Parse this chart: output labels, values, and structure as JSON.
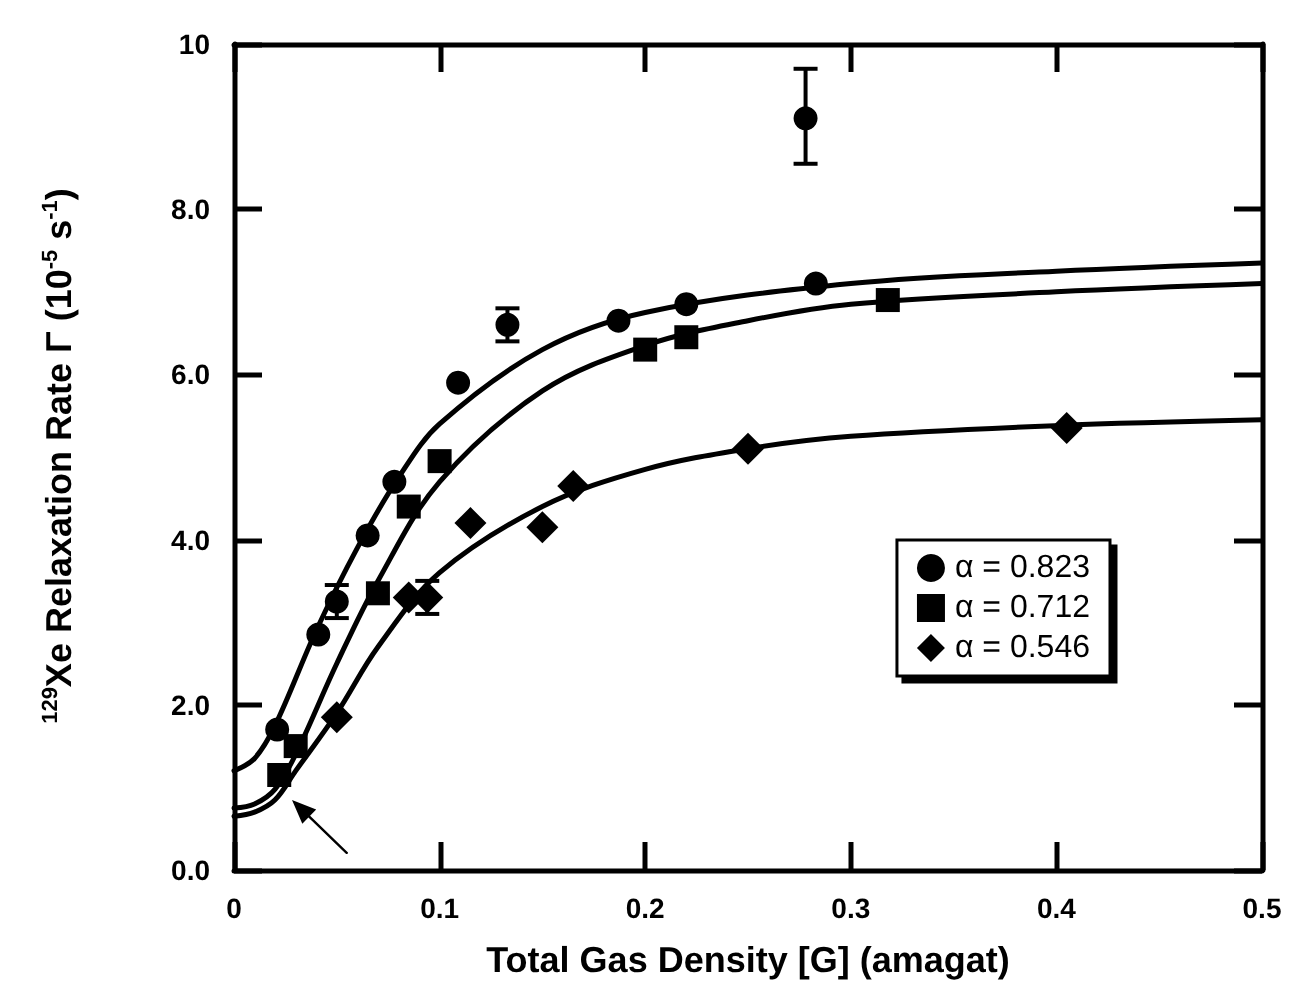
{
  "chart_data": {
    "type": "scatter",
    "xlabel": "Total Gas Density [G] (amagat)",
    "ylabel": "$^{129}$Xe Relaxation Rate Γ (10$^{-5}$ s$^{-1}$)",
    "xlim": [
      0,
      0.5
    ],
    "xticks": [
      0,
      0.1,
      0.2,
      0.3,
      0.4,
      0.5
    ],
    "ylim": [
      0,
      10
    ],
    "yticks": [
      {
        "value": 0,
        "label": "0.0"
      },
      {
        "value": 2,
        "label": "2.0"
      },
      {
        "value": 4,
        "label": "4.0"
      },
      {
        "value": 6,
        "label": "6.0"
      },
      {
        "value": 8,
        "label": "8.0"
      },
      10
    ],
    "grid": false,
    "legend": "right",
    "series": [
      {
        "name": "α = 0.823",
        "color": "#000000",
        "marker": "circle",
        "x": [
          0.021,
          0.041,
          0.05,
          0.065,
          0.078,
          0.109,
          0.133,
          0.187,
          0.22,
          0.278,
          0.283
        ],
        "values": [
          1.7,
          2.85,
          3.25,
          4.05,
          4.7,
          5.9,
          6.6,
          6.65,
          6.85,
          9.1,
          7.1
        ],
        "errors": [
          null,
          null,
          0.2,
          null,
          null,
          null,
          0.2,
          null,
          null,
          [
            8.55,
            9.7
          ],
          null
        ]
      },
      {
        "name": "α = 0.712",
        "color": "#000000",
        "marker": "square",
        "x": [
          0.022,
          0.03,
          0.07,
          0.085,
          0.1,
          0.2,
          0.22,
          0.318
        ],
        "values": [
          1.15,
          1.5,
          3.35,
          4.4,
          4.95,
          6.3,
          6.45,
          6.9
        ]
      },
      {
        "name": "α = 0.546",
        "color": "#000000",
        "marker": "diamond",
        "x": [
          0.05,
          0.085,
          0.094,
          0.115,
          0.15,
          0.165,
          0.25,
          0.405
        ],
        "values": [
          1.85,
          3.3,
          3.3,
          4.2,
          4.15,
          4.65,
          5.1,
          5.35
        ],
        "errors": [
          null,
          null,
          0.2,
          null,
          null,
          null,
          null,
          null
        ]
      },
      {
        "type": "line",
        "color": "#000000",
        "x": [
          0,
          0.01,
          0.02,
          0.04,
          0.06,
          0.08,
          0.1,
          0.15,
          0.2,
          0.3,
          0.4,
          0.5
        ],
        "values": [
          1.2,
          1.35,
          1.75,
          2.9,
          3.9,
          4.75,
          5.4,
          6.3,
          6.75,
          7.1,
          7.25,
          7.35
        ]
      },
      {
        "type": "line",
        "color": "#000000",
        "x": [
          0,
          0.01,
          0.02,
          0.03,
          0.05,
          0.07,
          0.1,
          0.15,
          0.2,
          0.25,
          0.3,
          0.4,
          0.5
        ],
        "values": [
          0.75,
          0.8,
          0.98,
          1.4,
          2.5,
          3.5,
          4.7,
          5.8,
          6.35,
          6.65,
          6.85,
          7.0,
          7.1
        ]
      },
      {
        "type": "line",
        "color": "#000000",
        "x": [
          0,
          0.01,
          0.02,
          0.03,
          0.05,
          0.07,
          0.1,
          0.15,
          0.2,
          0.25,
          0.3,
          0.4,
          0.5
        ],
        "values": [
          0.65,
          0.7,
          0.85,
          1.2,
          1.9,
          2.7,
          3.6,
          4.4,
          4.85,
          5.1,
          5.25,
          5.38,
          5.45
        ]
      }
    ]
  }
}
